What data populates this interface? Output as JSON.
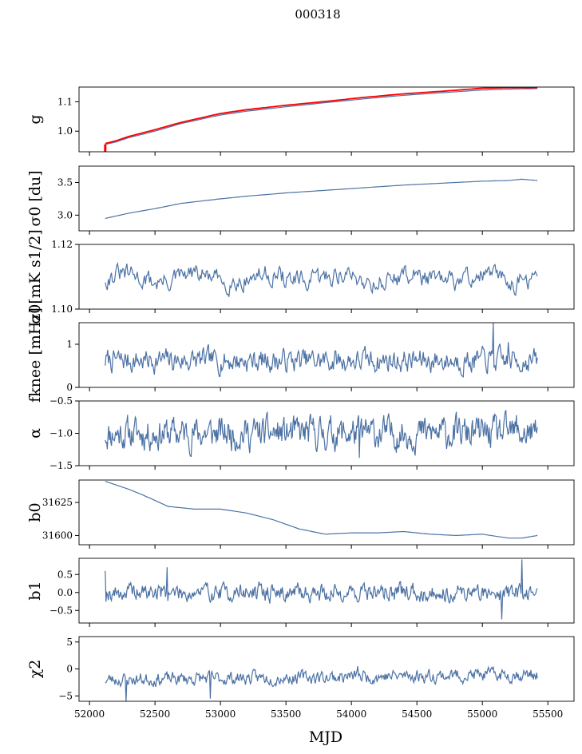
{
  "suptitle": "000318",
  "xlabel": "MJD",
  "colors": {
    "series": "#4c72a4",
    "highlight": "#ff0000",
    "axis": "#000000"
  },
  "chart_data": [
    {
      "type": "line",
      "ylabel": "g",
      "xlim": [
        51920,
        55700
      ],
      "ylim": [
        0.93,
        1.15
      ],
      "yticks": [
        1.0,
        1.1
      ],
      "ytick_labels": [
        "1.0",
        "1.1"
      ],
      "series": [
        {
          "name": "g",
          "color": "#4c72a4",
          "x": [
            52120,
            52200,
            52300,
            52500,
            52700,
            53000,
            53200,
            53500,
            53800,
            54100,
            54400,
            54700,
            55000,
            55200,
            55420
          ],
          "values": [
            0.955,
            0.963,
            0.978,
            1.0,
            1.026,
            1.055,
            1.068,
            1.083,
            1.097,
            1.11,
            1.122,
            1.131,
            1.14,
            1.143,
            1.145
          ]
        },
        {
          "name": "g (red)",
          "color": "#ff0000",
          "x": [
            52120,
            52200,
            52300,
            52500,
            52700,
            53000,
            53200,
            53500,
            53800,
            54100,
            54400,
            54700,
            55000,
            55200,
            55420
          ],
          "values": [
            0.958,
            0.967,
            0.982,
            1.005,
            1.03,
            1.06,
            1.073,
            1.088,
            1.101,
            1.115,
            1.127,
            1.136,
            1.146,
            1.148,
            1.148
          ]
        }
      ],
      "tags": {
        "min": 0.93,
        "max": 0.955,
        "x": 52120
      }
    },
    {
      "type": "line",
      "ylabel": "σ0 [du]",
      "xlim": [
        51920,
        55700
      ],
      "ylim": [
        2.76,
        3.75
      ],
      "yticks": [
        3.0,
        3.5
      ],
      "ytick_labels": [
        "3.0",
        "3.5"
      ],
      "series": [
        {
          "name": "sigma0",
          "color": "#4c72a4",
          "x": [
            52120,
            52300,
            52500,
            52700,
            53000,
            53200,
            53500,
            53800,
            54100,
            54400,
            54700,
            55000,
            55200,
            55300,
            55420
          ],
          "values": [
            2.95,
            3.03,
            3.1,
            3.18,
            3.25,
            3.29,
            3.34,
            3.38,
            3.42,
            3.46,
            3.49,
            3.52,
            3.53,
            3.55,
            3.53
          ]
        }
      ]
    },
    {
      "type": "line",
      "ylabel": "σ0[mK s1/2]",
      "xlim": [
        51920,
        55700
      ],
      "ylim": [
        1.1,
        1.12
      ],
      "yticks": [
        1.1,
        1.12
      ],
      "ytick_labels": [
        "1.10",
        "1.12"
      ],
      "series": [
        {
          "name": "sigma0_mK",
          "color": "#4c72a4",
          "noise": {
            "seed": 31,
            "base": 1.1095,
            "amp": 0.0025,
            "start": 52120,
            "end": 55420,
            "n": 420,
            "wave": 0.0012
          }
        }
      ]
    },
    {
      "type": "line",
      "ylabel": "fknee [mHz]",
      "xlim": [
        51920,
        55700
      ],
      "ylim": [
        0,
        1.5
      ],
      "yticks": [
        0,
        1
      ],
      "ytick_labels": [
        "0",
        "1"
      ],
      "series": [
        {
          "name": "fknee",
          "color": "#4c72a4",
          "noise": {
            "seed": 7,
            "base": 0.62,
            "amp": 0.22,
            "start": 52120,
            "end": 55420,
            "n": 520,
            "spikes": [
              [
                55080,
                1.5
              ],
              [
                55200,
                1.05
              ]
            ]
          }
        }
      ]
    },
    {
      "type": "line",
      "ylabel": "α",
      "xlim": [
        51920,
        55700
      ],
      "ylim": [
        -1.5,
        -0.5
      ],
      "yticks": [
        -1.5,
        -1.0,
        -0.5
      ],
      "ytick_labels": [
        "−1.5",
        "−1.0",
        "−0.5"
      ],
      "series": [
        {
          "name": "alpha",
          "color": "#4c72a4",
          "noise": {
            "seed": 11,
            "base": -1.0,
            "amp": 0.2,
            "start": 52120,
            "end": 55420,
            "n": 620,
            "spikes": [
              [
                54060,
                -1.38
              ],
              [
                55260,
                -0.72
              ]
            ]
          }
        }
      ]
    },
    {
      "type": "line",
      "ylabel": "b0",
      "xlim": [
        51920,
        55700
      ],
      "ylim": [
        31593,
        31642
      ],
      "yticks": [
        31600,
        31625
      ],
      "ytick_labels": [
        "31600",
        "31625"
      ],
      "series": [
        {
          "name": "b0",
          "color": "#4c72a4",
          "x": [
            52120,
            52300,
            52400,
            52600,
            52800,
            53000,
            53200,
            53400,
            53600,
            53800,
            54000,
            54200,
            54400,
            54600,
            54800,
            55000,
            55200,
            55300,
            55420
          ],
          "values": [
            31641,
            31635,
            31631,
            31622,
            31620,
            31620,
            31617,
            31612,
            31605,
            31601,
            31602,
            31602,
            31603,
            31601,
            31600,
            31601,
            31598,
            31598,
            31600
          ]
        }
      ]
    },
    {
      "type": "line",
      "ylabel": "b1",
      "xlim": [
        51920,
        55700
      ],
      "ylim": [
        -0.85,
        0.95
      ],
      "yticks": [
        -0.5,
        0.0,
        0.5
      ],
      "ytick_labels": [
        "−0.5",
        "0.0",
        "0.5"
      ],
      "series": [
        {
          "name": "b1",
          "color": "#4c72a4",
          "noise": {
            "seed": 19,
            "base": 0.0,
            "amp": 0.2,
            "start": 52120,
            "end": 55420,
            "n": 560,
            "spikes": [
              [
                52120,
                0.6
              ],
              [
                52590,
                0.7
              ],
              [
                55150,
                -0.75
              ],
              [
                55300,
                0.92
              ]
            ]
          }
        }
      ]
    },
    {
      "type": "line",
      "ylabel": "χ2",
      "xlim": [
        51920,
        55700
      ],
      "ylim": [
        -6,
        6
      ],
      "yticks": [
        -5,
        0,
        5
      ],
      "ytick_labels": [
        "−5",
        "0",
        "5"
      ],
      "series": [
        {
          "name": "chi2",
          "color": "#4c72a4",
          "noise": {
            "seed": 23,
            "base": -2.0,
            "amp": 1.0,
            "start": 52120,
            "end": 55420,
            "n": 540,
            "trend": 1.0,
            "spikes": [
              [
                52280,
                -6.0
              ],
              [
                52920,
                -5.5
              ],
              [
                54050,
                0.5
              ]
            ]
          }
        }
      ]
    }
  ],
  "xticks": [
    52000,
    52500,
    53000,
    53500,
    54000,
    54500,
    55000,
    55500
  ],
  "xtick_labels": [
    "52000",
    "52500",
    "53000",
    "53500",
    "54000",
    "54500",
    "55000",
    "55500"
  ]
}
